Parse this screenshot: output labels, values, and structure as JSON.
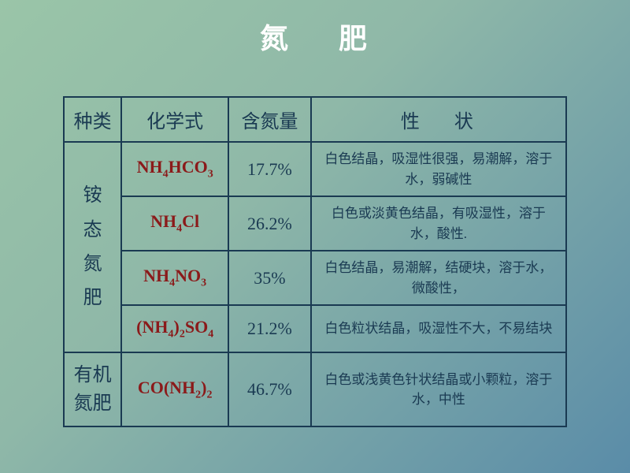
{
  "title_char1": "氮",
  "title_char2": "肥",
  "headers": {
    "category": "种类",
    "formula": "化学式",
    "nitrogen": "含氮量",
    "props_char1": "性",
    "props_char2": "状"
  },
  "categories": {
    "ammonium_line1": "铵",
    "ammonium_line2": "态",
    "ammonium_line3": "氮",
    "ammonium_line4": "肥",
    "organic_line1": "有机",
    "organic_line2": "氮肥"
  },
  "rows": [
    {
      "nitrogen": "17.7%",
      "props": "白色结晶，吸湿性很强，易潮解，溶于水，弱碱性"
    },
    {
      "nitrogen": "26.2%",
      "props": "白色或淡黄色结晶，有吸湿性，溶于水，酸性."
    },
    {
      "nitrogen": "35%",
      "props": "白色结晶，易潮解，结硬块，溶于水，微酸性，"
    },
    {
      "nitrogen": "21.2%",
      "props": "白色粒状结晶，吸湿性不大，不易结块"
    },
    {
      "nitrogen": "46.7%",
      "props": "白色或浅黄色针状结晶或小颗粒，溶于水，中性"
    }
  ],
  "colors": {
    "border": "#1a3a52",
    "text": "#1a3a52",
    "formula": "#8b1a1a",
    "title": "#ffffff",
    "bg_start": "#9ac5a8",
    "bg_end": "#5a8ca8"
  }
}
